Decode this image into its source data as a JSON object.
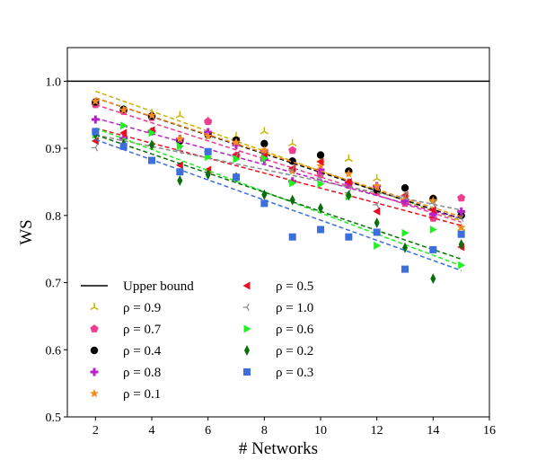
{
  "chart_data": {
    "type": "scatter",
    "xlabel": "# Networks",
    "ylabel": "WS",
    "xlim": [
      1,
      16
    ],
    "ylim": [
      0.5,
      1.05
    ],
    "xticks": [
      2,
      4,
      6,
      8,
      10,
      12,
      14,
      16
    ],
    "yticks": [
      0.5,
      0.6,
      0.7,
      0.8,
      0.9,
      1.0
    ],
    "xtick_labels": [
      "2",
      "4",
      "6",
      "8",
      "10",
      "12",
      "14",
      "16"
    ],
    "ytick_labels": [
      "0.5",
      "0.6",
      "0.7",
      "0.8",
      "0.9",
      "1.0"
    ],
    "grid": false,
    "legend_position": "bottom-left",
    "upper_bound": {
      "name": "Upper bound",
      "value": 1.0,
      "color": "#000000"
    },
    "x": [
      2,
      3,
      4,
      5,
      6,
      7,
      8,
      9,
      10,
      11,
      12,
      13,
      14,
      15
    ],
    "series": [
      {
        "name": "ρ = 0.9",
        "marker": "tri",
        "color": "#c8b400",
        "values": [
          0.968,
          0.958,
          0.952,
          0.949,
          0.941,
          0.918,
          0.925,
          0.907,
          0.883,
          0.884,
          0.855,
          0.832,
          0.825,
          0.781
        ],
        "trend": [
          0.985,
          0.792
        ]
      },
      {
        "name": "ρ = 0.7",
        "marker": "pentagon",
        "color": "#ee3c8e",
        "values": [
          0.965,
          0.955,
          0.946,
          0.912,
          0.94,
          0.889,
          0.895,
          0.897,
          0.862,
          0.845,
          0.835,
          0.818,
          0.796,
          0.826
        ],
        "trend": [
          0.965,
          0.79
        ]
      },
      {
        "name": "ρ = 0.4",
        "marker": "circle",
        "color": "#000000",
        "values": [
          0.969,
          0.958,
          0.948,
          0.911,
          0.92,
          0.912,
          0.907,
          0.881,
          0.89,
          0.866,
          0.838,
          0.841,
          0.825,
          0.8
        ],
        "trend": [
          0.975,
          0.795
        ]
      },
      {
        "name": "ρ = 0.8",
        "marker": "plus",
        "color": "#b821c8",
        "values": [
          0.943,
          0.915,
          0.925,
          0.914,
          0.924,
          0.905,
          0.883,
          0.851,
          0.868,
          0.849,
          0.844,
          0.822,
          0.802,
          0.806
        ],
        "trend": [
          0.945,
          0.795
        ]
      },
      {
        "name": "ρ = 0.1",
        "marker": "star",
        "color": "#f58a1f",
        "values": [
          0.97,
          0.957,
          0.949,
          0.914,
          0.918,
          0.909,
          0.897,
          0.866,
          0.874,
          0.862,
          0.844,
          0.828,
          0.822,
          0.782
        ],
        "trend": [
          0.975,
          0.798
        ]
      },
      {
        "name": "ρ = 0.5",
        "marker": "tri_left",
        "color": "#e8101f",
        "values": [
          0.911,
          0.923,
          0.927,
          0.875,
          0.868,
          0.89,
          0.888,
          0.87,
          0.88,
          0.85,
          0.806,
          0.83,
          0.808,
          0.753
        ],
        "trend": [
          0.93,
          0.785
        ]
      },
      {
        "name": "ρ = 1.0",
        "marker": "tri_small_left",
        "color": "#8c8c8c",
        "values": [
          0.901,
          0.912,
          0.905,
          0.897,
          0.895,
          0.888,
          0.881,
          0.868,
          0.856,
          0.834,
          0.816,
          0.829,
          0.818,
          0.796
        ],
        "trend": [
          0.92,
          0.808
        ]
      },
      {
        "name": "ρ = 0.6",
        "marker": "tri_right",
        "color": "#1ff01f",
        "values": [
          0.92,
          0.934,
          0.923,
          0.903,
          0.887,
          0.884,
          0.885,
          0.848,
          0.847,
          0.828,
          0.755,
          0.774,
          0.779,
          0.726
        ],
        "trend": [
          0.93,
          0.725
        ]
      },
      {
        "name": "ρ = 0.2",
        "marker": "thin_diamond",
        "color": "#0a6e0a",
        "values": [
          0.921,
          0.906,
          0.905,
          0.852,
          0.861,
          0.857,
          0.831,
          0.823,
          0.811,
          0.83,
          0.789,
          0.752,
          0.706,
          0.757
        ],
        "trend": [
          0.92,
          0.735
        ]
      },
      {
        "name": "ρ = 0.3",
        "marker": "square",
        "color": "#3c6edc",
        "values": [
          0.925,
          0.903,
          0.882,
          0.865,
          0.895,
          0.857,
          0.818,
          0.768,
          0.779,
          0.768,
          0.775,
          0.72,
          0.749,
          0.772
        ],
        "trend": [
          0.913,
          0.718
        ]
      }
    ]
  }
}
